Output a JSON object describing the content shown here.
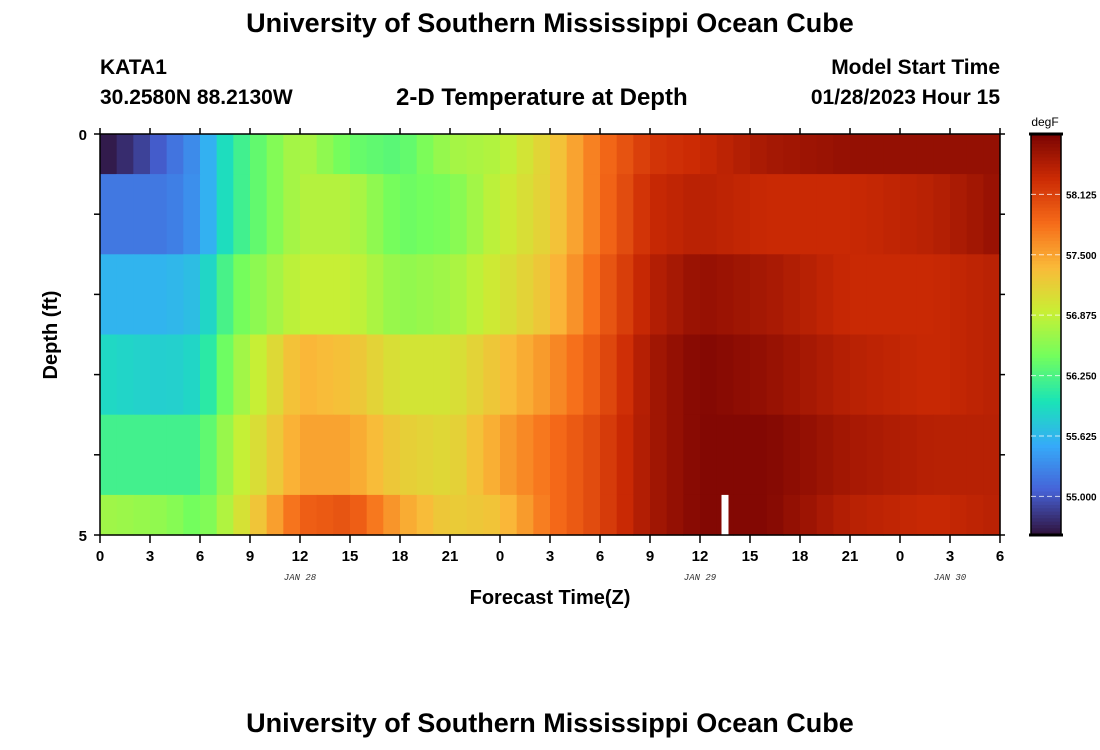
{
  "header": {
    "title": "University of Southern Mississippi Ocean Cube",
    "station_id": "KATA1",
    "station_coords": "30.2580N  88.2130W",
    "plot_title": "2-D Temperature at Depth",
    "model_start_label": "Model Start Time",
    "model_start_time": "01/28/2023 Hour 15"
  },
  "footer": {
    "title": "University of Southern Mississippi Ocean Cube"
  },
  "chart_data": {
    "type": "heatmap",
    "xlabel": "Forecast Time(Z)",
    "ylabel": "Depth (ft)",
    "colorbar_label": "degF",
    "x_range_hours": [
      0,
      54
    ],
    "y_range": [
      0,
      5
    ],
    "x_tick_labels": [
      "0",
      "3",
      "6",
      "9",
      "12",
      "15",
      "18",
      "21",
      "0",
      "3",
      "6",
      "9",
      "12",
      "15",
      "18",
      "21",
      "0",
      "3",
      "6"
    ],
    "y_tick_labels": [
      "0",
      "5"
    ],
    "date_labels": [
      {
        "label": "JAN 28",
        "hour": 12
      },
      {
        "label": "JAN 29",
        "hour": 36
      },
      {
        "label": "JAN 30",
        "hour": 51
      }
    ],
    "colorbar_ticks": [
      "55.000",
      "55.625",
      "56.250",
      "56.875",
      "57.500",
      "58.125"
    ],
    "colorbar_range": [
      54.6,
      58.75
    ],
    "colormap": [
      "#30123b",
      "#4662d7",
      "#36aaf9",
      "#1ae4b6",
      "#72fe5e",
      "#c8ef34",
      "#faba39",
      "#f66b19",
      "#cb2a04",
      "#7a0403"
    ],
    "depth_layers": [
      0.5,
      1.5,
      2.5,
      3.5,
      4.5,
      5.0
    ],
    "series": [
      {
        "depth": 0.5,
        "knots_hours": [
          0,
          2,
          6,
          8,
          12,
          15,
          18,
          21,
          24,
          27,
          30,
          33,
          36,
          40,
          45,
          50,
          54
        ],
        "values": [
          54.6,
          54.8,
          55.4,
          56.1,
          56.8,
          56.4,
          56.3,
          56.7,
          56.8,
          57.2,
          57.8,
          58.2,
          58.3,
          58.5,
          58.6,
          58.6,
          58.6
        ]
      },
      {
        "depth": 1.5,
        "knots_hours": [
          0,
          4,
          6,
          8,
          12,
          15,
          18,
          21,
          24,
          27,
          30,
          33,
          36,
          40,
          45,
          50,
          54
        ],
        "values": [
          55.2,
          55.2,
          55.4,
          56.1,
          56.8,
          56.8,
          56.4,
          56.5,
          56.9,
          57.2,
          57.8,
          58.3,
          58.4,
          58.3,
          58.3,
          58.4,
          58.6
        ]
      },
      {
        "depth": 2.5,
        "knots_hours": [
          0,
          4,
          6,
          8,
          12,
          15,
          18,
          21,
          24,
          27,
          30,
          33,
          36,
          40,
          45,
          50,
          54
        ],
        "values": [
          55.6,
          55.6,
          55.7,
          56.4,
          56.9,
          56.9,
          56.6,
          56.7,
          57.0,
          57.3,
          57.9,
          58.4,
          58.6,
          58.5,
          58.3,
          58.3,
          58.4
        ]
      },
      {
        "depth": 3.5,
        "knots_hours": [
          0,
          4,
          6,
          8,
          12,
          15,
          18,
          21,
          24,
          27,
          30,
          33,
          36,
          40,
          45,
          50,
          54
        ],
        "values": [
          55.9,
          55.8,
          55.9,
          56.6,
          57.4,
          57.3,
          57.0,
          57.0,
          57.3,
          57.6,
          58.0,
          58.5,
          58.7,
          58.6,
          58.4,
          58.3,
          58.4
        ]
      },
      {
        "depth": 4.5,
        "knots_hours": [
          0,
          4,
          6,
          8,
          12,
          15,
          18,
          21,
          24,
          27,
          30,
          33,
          36,
          40,
          45,
          50,
          54
        ],
        "values": [
          56.2,
          56.2,
          56.2,
          56.8,
          57.5,
          57.5,
          57.2,
          57.1,
          57.5,
          57.8,
          58.1,
          58.5,
          58.7,
          58.7,
          58.5,
          58.4,
          58.4
        ]
      },
      {
        "depth": 5.0,
        "knots_hours": [
          0,
          4,
          6,
          8,
          12,
          15,
          18,
          21,
          24,
          27,
          30,
          33,
          36,
          40,
          45,
          50,
          54
        ],
        "values": [
          56.7,
          56.6,
          56.4,
          56.9,
          57.9,
          58.0,
          57.5,
          57.2,
          57.3,
          57.8,
          58.1,
          58.5,
          58.7,
          58.7,
          58.4,
          58.3,
          58.4
        ]
      }
    ],
    "missing_data": [
      {
        "hour": 37.5,
        "depth_from": 4.5,
        "depth_to": 5.0
      }
    ],
    "grid": false,
    "legend": "right colorbar"
  }
}
